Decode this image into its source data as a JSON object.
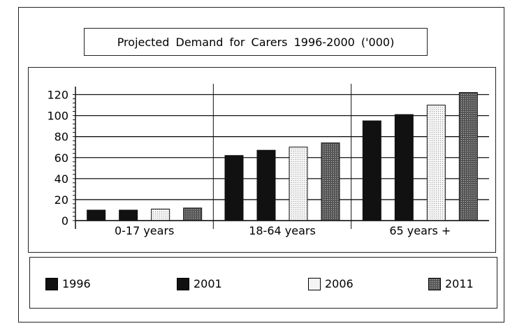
{
  "chart_data": {
    "type": "bar",
    "title": "Projected Demand for Carers 1996-2000 ('000)",
    "categories": [
      "0-17  years",
      "18-64  years",
      "65 years +"
    ],
    "series": [
      {
        "name": "1996",
        "values": [
          10,
          62,
          95
        ],
        "color": "#111111",
        "pattern": "solid"
      },
      {
        "name": "2001",
        "values": [
          10,
          67,
          101
        ],
        "color": "#111111",
        "pattern": "solid"
      },
      {
        "name": "2006",
        "values": [
          11,
          70,
          110
        ],
        "color": "#eeeeee",
        "pattern": "light-dots"
      },
      {
        "name": "2011",
        "values": [
          12,
          74,
          122
        ],
        "color": "#666666",
        "pattern": "dark-dots"
      }
    ],
    "yticks": [
      0,
      20,
      40,
      60,
      80,
      100,
      120
    ],
    "ylim": [
      0,
      125
    ],
    "grid": true,
    "legend_position": "bottom",
    "xlabel": "",
    "ylabel": ""
  }
}
